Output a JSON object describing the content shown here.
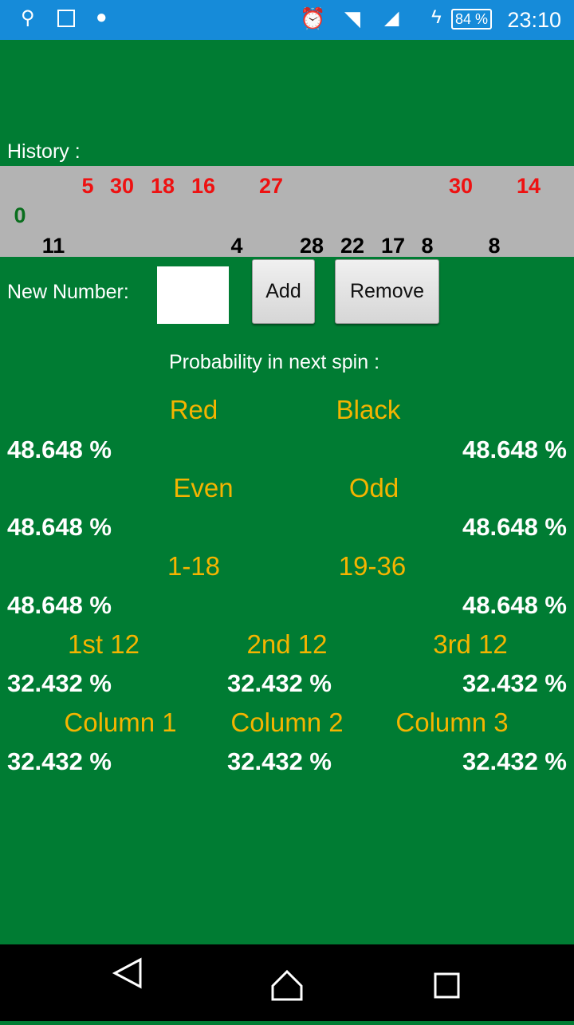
{
  "status_bar": {
    "icons": [
      "usb-icon",
      "image-icon",
      "android-icon",
      "alarm-icon",
      "wifi-icon",
      "signal-icon",
      "charging-icon"
    ],
    "battery": "84 %",
    "time": "23:10"
  },
  "history": {
    "label": "History :",
    "numbers": [
      {
        "value": "0",
        "color": "#0a6e1e"
      },
      {
        "value": "11",
        "color": "#000000"
      },
      {
        "value": "5",
        "color": "#ee1111"
      },
      {
        "value": "30",
        "color": "#ee1111"
      },
      {
        "value": "18",
        "color": "#ee1111"
      },
      {
        "value": "16",
        "color": "#ee1111"
      },
      {
        "value": "4",
        "color": "#000000"
      },
      {
        "value": "27",
        "color": "#ee1111"
      },
      {
        "value": "28",
        "color": "#000000"
      },
      {
        "value": "22",
        "color": "#000000"
      },
      {
        "value": "17",
        "color": "#000000"
      },
      {
        "value": "8",
        "color": "#000000"
      },
      {
        "value": "30",
        "color": "#ee1111"
      },
      {
        "value": "8",
        "color": "#000000"
      },
      {
        "value": "14",
        "color": "#ee1111"
      }
    ]
  },
  "input": {
    "label": "New Number:",
    "value": "",
    "add": "Add",
    "remove": "Remove"
  },
  "probability": {
    "title": "Probability in next spin :",
    "red": {
      "label": "Red",
      "value": "48.648 %"
    },
    "black": {
      "label": "Black",
      "value": "48.648 %"
    },
    "even": {
      "label": "Even",
      "value": "48.648 %"
    },
    "odd": {
      "label": "Odd",
      "value": "48.648 %"
    },
    "low": {
      "label": "1-18",
      "value": "48.648 %"
    },
    "high": {
      "label": "19-36",
      "value": "48.648 %"
    },
    "dozen1": {
      "label": "1st 12",
      "value": "32.432 %"
    },
    "dozen2": {
      "label": "2nd 12",
      "value": "32.432 %"
    },
    "dozen3": {
      "label": "3rd 12",
      "value": "32.432 %"
    },
    "col1": {
      "label": "Column 1",
      "value": "32.432 %"
    },
    "col2": {
      "label": "Column 2",
      "value": "32.432 %"
    },
    "col3": {
      "label": "Column 3",
      "value": "32.432 %"
    }
  },
  "colors": {
    "background": "#007c33",
    "status_bar": "#168bd9",
    "label": "#f4b400",
    "history_bg": "#b3b3b3"
  }
}
